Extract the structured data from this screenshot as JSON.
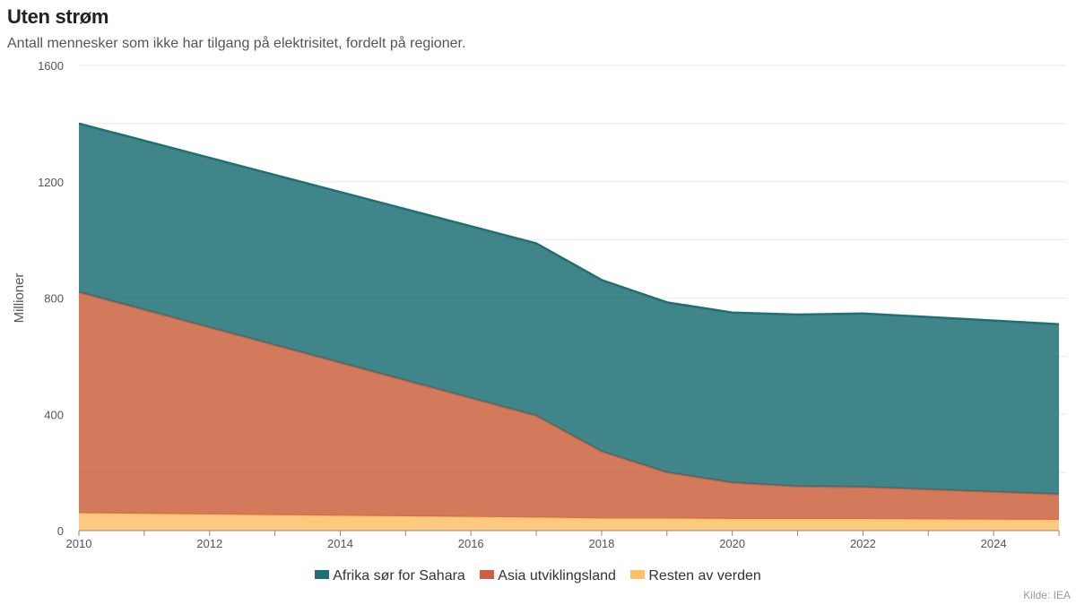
{
  "header": {
    "title": "Uten strøm",
    "subtitle": "Antall mennesker som ikke har tilgang på elektrisitet, fordelt på regioner."
  },
  "footer": {
    "source": "Kilde: IEA"
  },
  "colors": {
    "africa": "#1f7075",
    "asia": "#cb6140",
    "rest": "#fbc068",
    "grid": "#e8e8e8"
  },
  "chart_data": {
    "type": "area",
    "stacked": true,
    "title": "Uten strøm",
    "subtitle": "Antall mennesker som ikke har tilgang på elektrisitet, fordelt på regioner.",
    "xlabel": "",
    "ylabel": "Millioner",
    "xlim": [
      2010,
      2025
    ],
    "ylim": [
      0,
      1600
    ],
    "x_ticks": [
      2010,
      2012,
      2014,
      2016,
      2018,
      2020,
      2022,
      2024
    ],
    "y_ticks": [
      0,
      400,
      800,
      1200,
      1600
    ],
    "grid": true,
    "legend_position": "bottom",
    "x": [
      2010,
      2017,
      2018,
      2019,
      2020,
      2021,
      2022,
      2025
    ],
    "series": [
      {
        "name": "Resten av verden",
        "color": "#fbc068",
        "values": [
          60,
          45,
          42,
          42,
          40,
          40,
          40,
          37
        ]
      },
      {
        "name": "Asia utviklingsland",
        "color": "#cb6140",
        "values": [
          760,
          350,
          230,
          158,
          125,
          112,
          110,
          88
        ]
      },
      {
        "name": "Afrika sør for Sahara",
        "color": "#1f7075",
        "values": [
          580,
          593,
          590,
          585,
          585,
          591,
          597,
          585
        ]
      }
    ],
    "legend": [
      "Afrika sør for Sahara",
      "Asia utviklingsland",
      "Resten av verden"
    ]
  }
}
